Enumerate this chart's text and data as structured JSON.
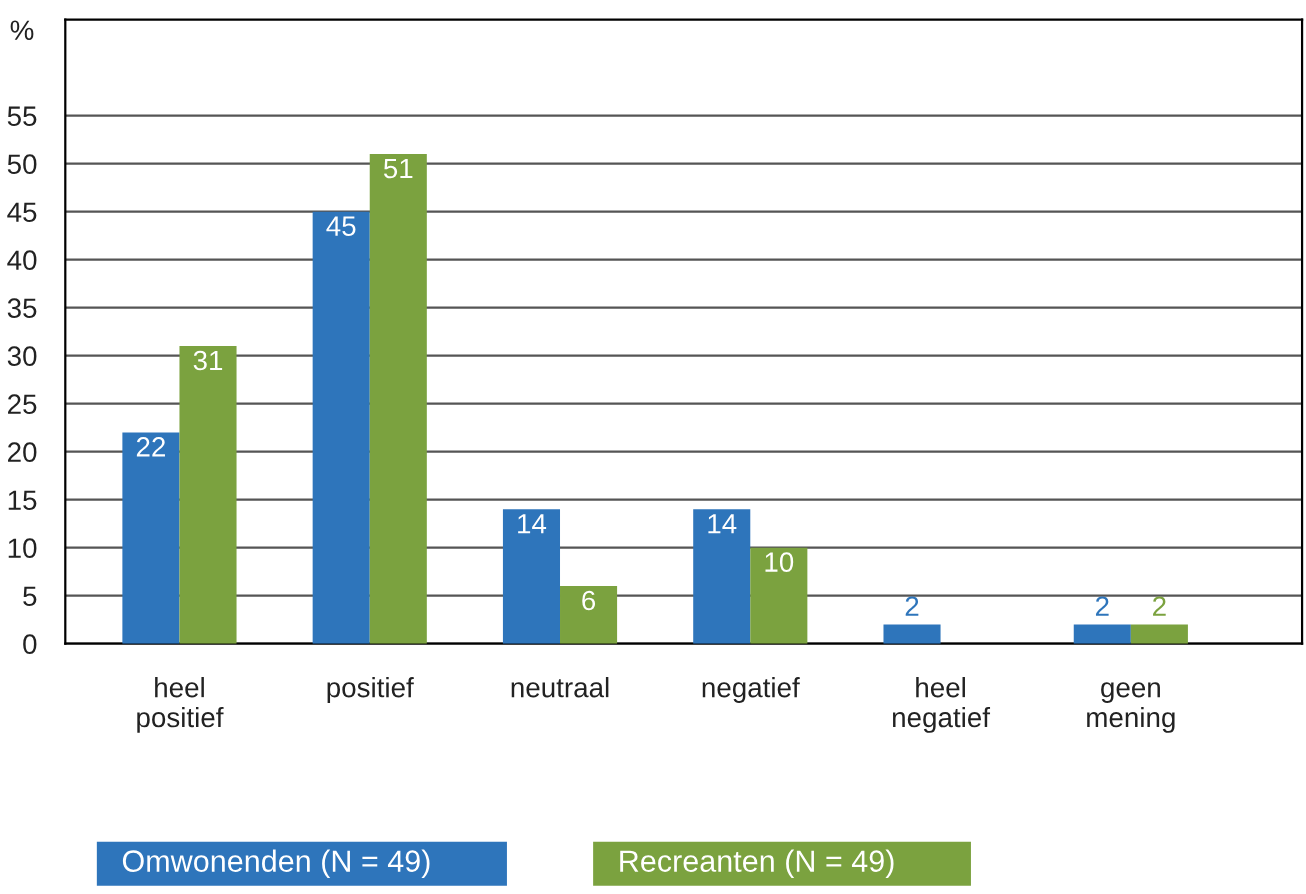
{
  "chart_data": {
    "type": "bar",
    "ylabel": "%",
    "categories": [
      "heel\npositief",
      "positief",
      "neutraal",
      "negatief",
      "heel\nnegatief",
      "geen\nmening"
    ],
    "series": [
      {
        "name": "Omwonenden (N = 49)",
        "color": "#2e75bb",
        "values": [
          22,
          45,
          14,
          14,
          2,
          2
        ]
      },
      {
        "name": "Recreanten (N = 49)",
        "color": "#7ba23f",
        "values": [
          31,
          51,
          6,
          10,
          null,
          2
        ]
      }
    ],
    "ylim": [
      0,
      65
    ],
    "yticks": [
      0,
      5,
      10,
      15,
      20,
      25,
      30,
      35,
      40,
      45,
      50,
      55
    ],
    "grid": "y",
    "legend": "bottom",
    "data_labels": true
  }
}
